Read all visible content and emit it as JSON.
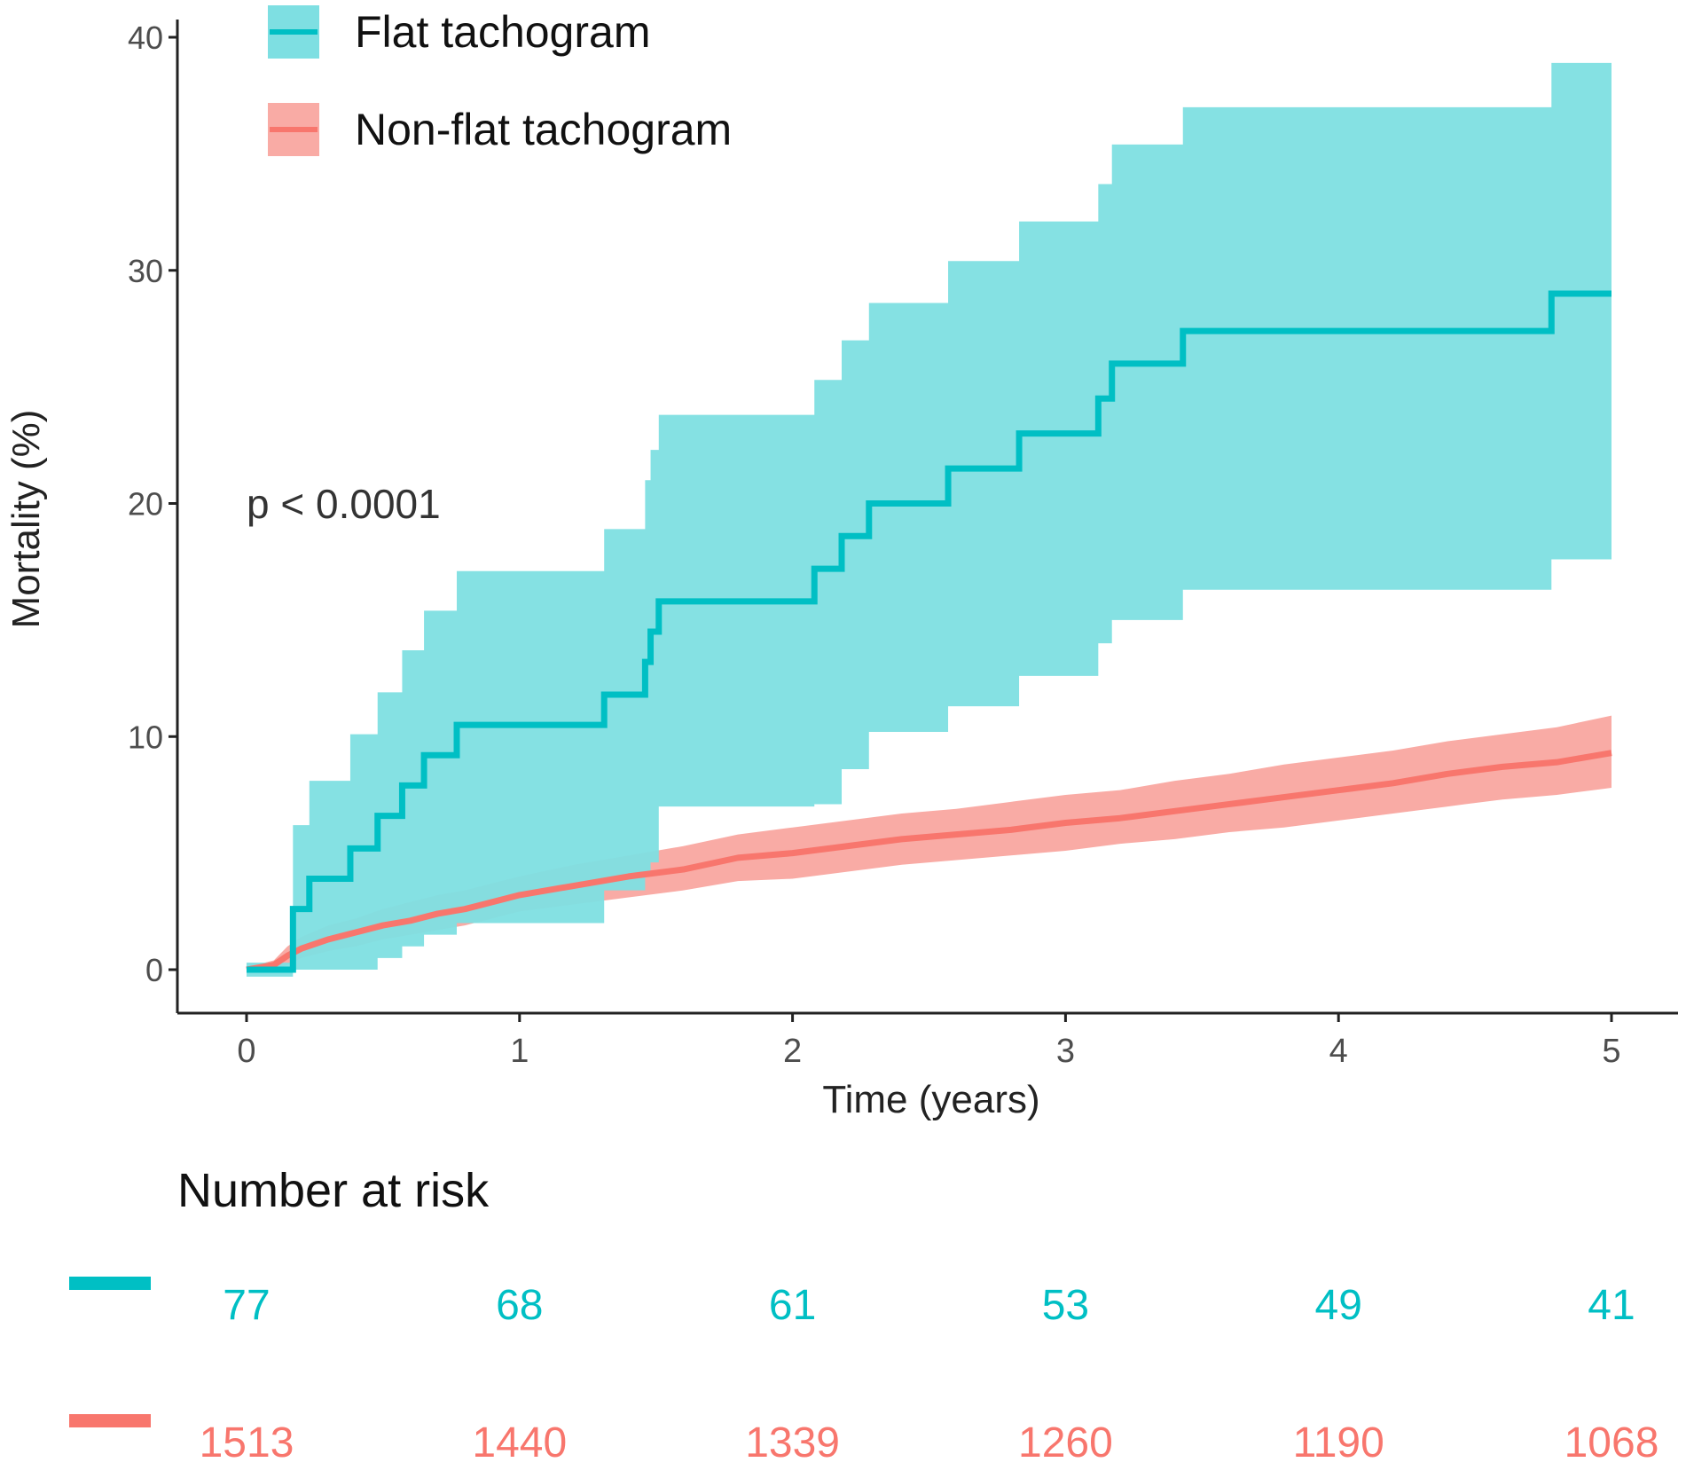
{
  "chart_data": {
    "type": "line",
    "subtype": "kaplan-meier cumulative incidence with confidence bands",
    "xlabel": "Time (years)",
    "ylabel": "Mortality (%)",
    "xlim": [
      0,
      5
    ],
    "ylim": [
      -1.2,
      41
    ],
    "xticks": [
      0,
      1,
      2,
      3,
      4,
      5
    ],
    "yticks": [
      0,
      10,
      20,
      30,
      40
    ],
    "grid": false,
    "legend_position": "top-left",
    "annotation": "p < 0.0001",
    "series": [
      {
        "name": "Flat tachogram",
        "color": "#00BFC4",
        "band_color": "#7EDFE2",
        "steps": [
          [
            0,
            0
          ],
          [
            0.17,
            2.6
          ],
          [
            0.23,
            3.9
          ],
          [
            0.38,
            5.2
          ],
          [
            0.48,
            6.6
          ],
          [
            0.57,
            7.9
          ],
          [
            0.65,
            9.2
          ],
          [
            0.77,
            10.5
          ],
          [
            1.31,
            11.8
          ],
          [
            1.46,
            13.2
          ],
          [
            1.48,
            14.5
          ],
          [
            1.51,
            15.8
          ],
          [
            2.08,
            17.2
          ],
          [
            2.18,
            18.6
          ],
          [
            2.28,
            20.0
          ],
          [
            2.57,
            21.5
          ],
          [
            2.83,
            23.0
          ],
          [
            3.12,
            24.5
          ],
          [
            3.17,
            26.0
          ],
          [
            3.43,
            27.4
          ],
          [
            4.78,
            29.0
          ],
          [
            5.0,
            29.0
          ]
        ],
        "band_upper": [
          [
            0,
            0.3
          ],
          [
            0.17,
            6.2
          ],
          [
            0.23,
            8.1
          ],
          [
            0.38,
            10.1
          ],
          [
            0.48,
            11.9
          ],
          [
            0.57,
            13.7
          ],
          [
            0.65,
            15.4
          ],
          [
            0.77,
            17.1
          ],
          [
            1.31,
            18.9
          ],
          [
            1.46,
            21.0
          ],
          [
            1.48,
            22.3
          ],
          [
            1.51,
            23.8
          ],
          [
            2.08,
            25.3
          ],
          [
            2.18,
            27.0
          ],
          [
            2.28,
            28.6
          ],
          [
            2.57,
            30.4
          ],
          [
            2.83,
            32.1
          ],
          [
            3.12,
            33.7
          ],
          [
            3.17,
            35.4
          ],
          [
            3.43,
            37.0
          ],
          [
            4.78,
            38.9
          ],
          [
            5.0,
            38.9
          ]
        ],
        "band_lower": [
          [
            0,
            -0.3
          ],
          [
            0.17,
            0.0
          ],
          [
            0.23,
            0.0
          ],
          [
            0.38,
            0.0
          ],
          [
            0.48,
            0.5
          ],
          [
            0.57,
            1.0
          ],
          [
            0.65,
            1.5
          ],
          [
            0.77,
            2.0
          ],
          [
            1.31,
            3.4
          ],
          [
            1.46,
            4.2
          ],
          [
            1.48,
            4.6
          ],
          [
            1.51,
            7.0
          ],
          [
            2.08,
            7.1
          ],
          [
            2.18,
            8.6
          ],
          [
            2.28,
            10.2
          ],
          [
            2.57,
            11.3
          ],
          [
            2.83,
            12.6
          ],
          [
            3.12,
            14.0
          ],
          [
            3.17,
            15.0
          ],
          [
            3.43,
            16.3
          ],
          [
            4.78,
            17.6
          ],
          [
            5.0,
            17.6
          ]
        ]
      },
      {
        "name": "Non-flat tachogram",
        "color": "#F8766D",
        "band_color": "#F9ABA5",
        "points": [
          [
            0,
            0
          ],
          [
            0.1,
            0.2
          ],
          [
            0.15,
            0.6
          ],
          [
            0.2,
            0.9
          ],
          [
            0.3,
            1.3
          ],
          [
            0.4,
            1.6
          ],
          [
            0.5,
            1.9
          ],
          [
            0.6,
            2.1
          ],
          [
            0.7,
            2.4
          ],
          [
            0.8,
            2.6
          ],
          [
            1.0,
            3.2
          ],
          [
            1.2,
            3.6
          ],
          [
            1.4,
            4.0
          ],
          [
            1.6,
            4.3
          ],
          [
            1.8,
            4.8
          ],
          [
            2.0,
            5.0
          ],
          [
            2.2,
            5.3
          ],
          [
            2.4,
            5.6
          ],
          [
            2.6,
            5.8
          ],
          [
            2.8,
            6.0
          ],
          [
            3.0,
            6.3
          ],
          [
            3.2,
            6.5
          ],
          [
            3.4,
            6.8
          ],
          [
            3.6,
            7.1
          ],
          [
            3.8,
            7.4
          ],
          [
            4.0,
            7.7
          ],
          [
            4.2,
            8.0
          ],
          [
            4.4,
            8.4
          ],
          [
            4.6,
            8.7
          ],
          [
            4.8,
            8.9
          ],
          [
            5.0,
            9.3
          ]
        ],
        "band_upper": [
          [
            0,
            0.1
          ],
          [
            0.1,
            0.4
          ],
          [
            0.15,
            1.0
          ],
          [
            0.2,
            1.4
          ],
          [
            0.3,
            1.9
          ],
          [
            0.4,
            2.2
          ],
          [
            0.5,
            2.6
          ],
          [
            0.6,
            2.9
          ],
          [
            0.7,
            3.2
          ],
          [
            0.8,
            3.4
          ],
          [
            1.0,
            4.0
          ],
          [
            1.2,
            4.5
          ],
          [
            1.4,
            4.9
          ],
          [
            1.6,
            5.3
          ],
          [
            1.8,
            5.8
          ],
          [
            2.0,
            6.1
          ],
          [
            2.2,
            6.4
          ],
          [
            2.4,
            6.7
          ],
          [
            2.6,
            6.9
          ],
          [
            2.8,
            7.2
          ],
          [
            3.0,
            7.5
          ],
          [
            3.2,
            7.7
          ],
          [
            3.4,
            8.1
          ],
          [
            3.6,
            8.4
          ],
          [
            3.8,
            8.8
          ],
          [
            4.0,
            9.1
          ],
          [
            4.2,
            9.4
          ],
          [
            4.4,
            9.8
          ],
          [
            4.6,
            10.1
          ],
          [
            4.8,
            10.4
          ],
          [
            5.0,
            10.9
          ]
        ],
        "band_lower": [
          [
            0,
            -0.1
          ],
          [
            0.1,
            0.0
          ],
          [
            0.15,
            0.2
          ],
          [
            0.2,
            0.5
          ],
          [
            0.3,
            0.8
          ],
          [
            0.4,
            1.0
          ],
          [
            0.5,
            1.3
          ],
          [
            0.6,
            1.5
          ],
          [
            0.7,
            1.7
          ],
          [
            0.8,
            1.9
          ],
          [
            1.0,
            2.5
          ],
          [
            1.2,
            2.8
          ],
          [
            1.4,
            3.1
          ],
          [
            1.6,
            3.4
          ],
          [
            1.8,
            3.8
          ],
          [
            2.0,
            3.9
          ],
          [
            2.2,
            4.2
          ],
          [
            2.4,
            4.5
          ],
          [
            2.6,
            4.7
          ],
          [
            2.8,
            4.9
          ],
          [
            3.0,
            5.1
          ],
          [
            3.2,
            5.4
          ],
          [
            3.4,
            5.6
          ],
          [
            3.6,
            5.9
          ],
          [
            3.8,
            6.1
          ],
          [
            4.0,
            6.4
          ],
          [
            4.2,
            6.7
          ],
          [
            4.4,
            7.0
          ],
          [
            4.6,
            7.3
          ],
          [
            4.8,
            7.5
          ],
          [
            5.0,
            7.8
          ]
        ]
      }
    ]
  },
  "risk_table": {
    "title": "Number at risk",
    "rows": [
      {
        "name": "Flat tachogram",
        "color": "#00BFC4",
        "values": [
          "77",
          "68",
          "61",
          "53",
          "49",
          "41"
        ]
      },
      {
        "name": "Non-flat tachogram",
        "color": "#F8766D",
        "values": [
          "1513",
          "1440",
          "1339",
          "1260",
          "1190",
          "1068"
        ]
      }
    ]
  }
}
